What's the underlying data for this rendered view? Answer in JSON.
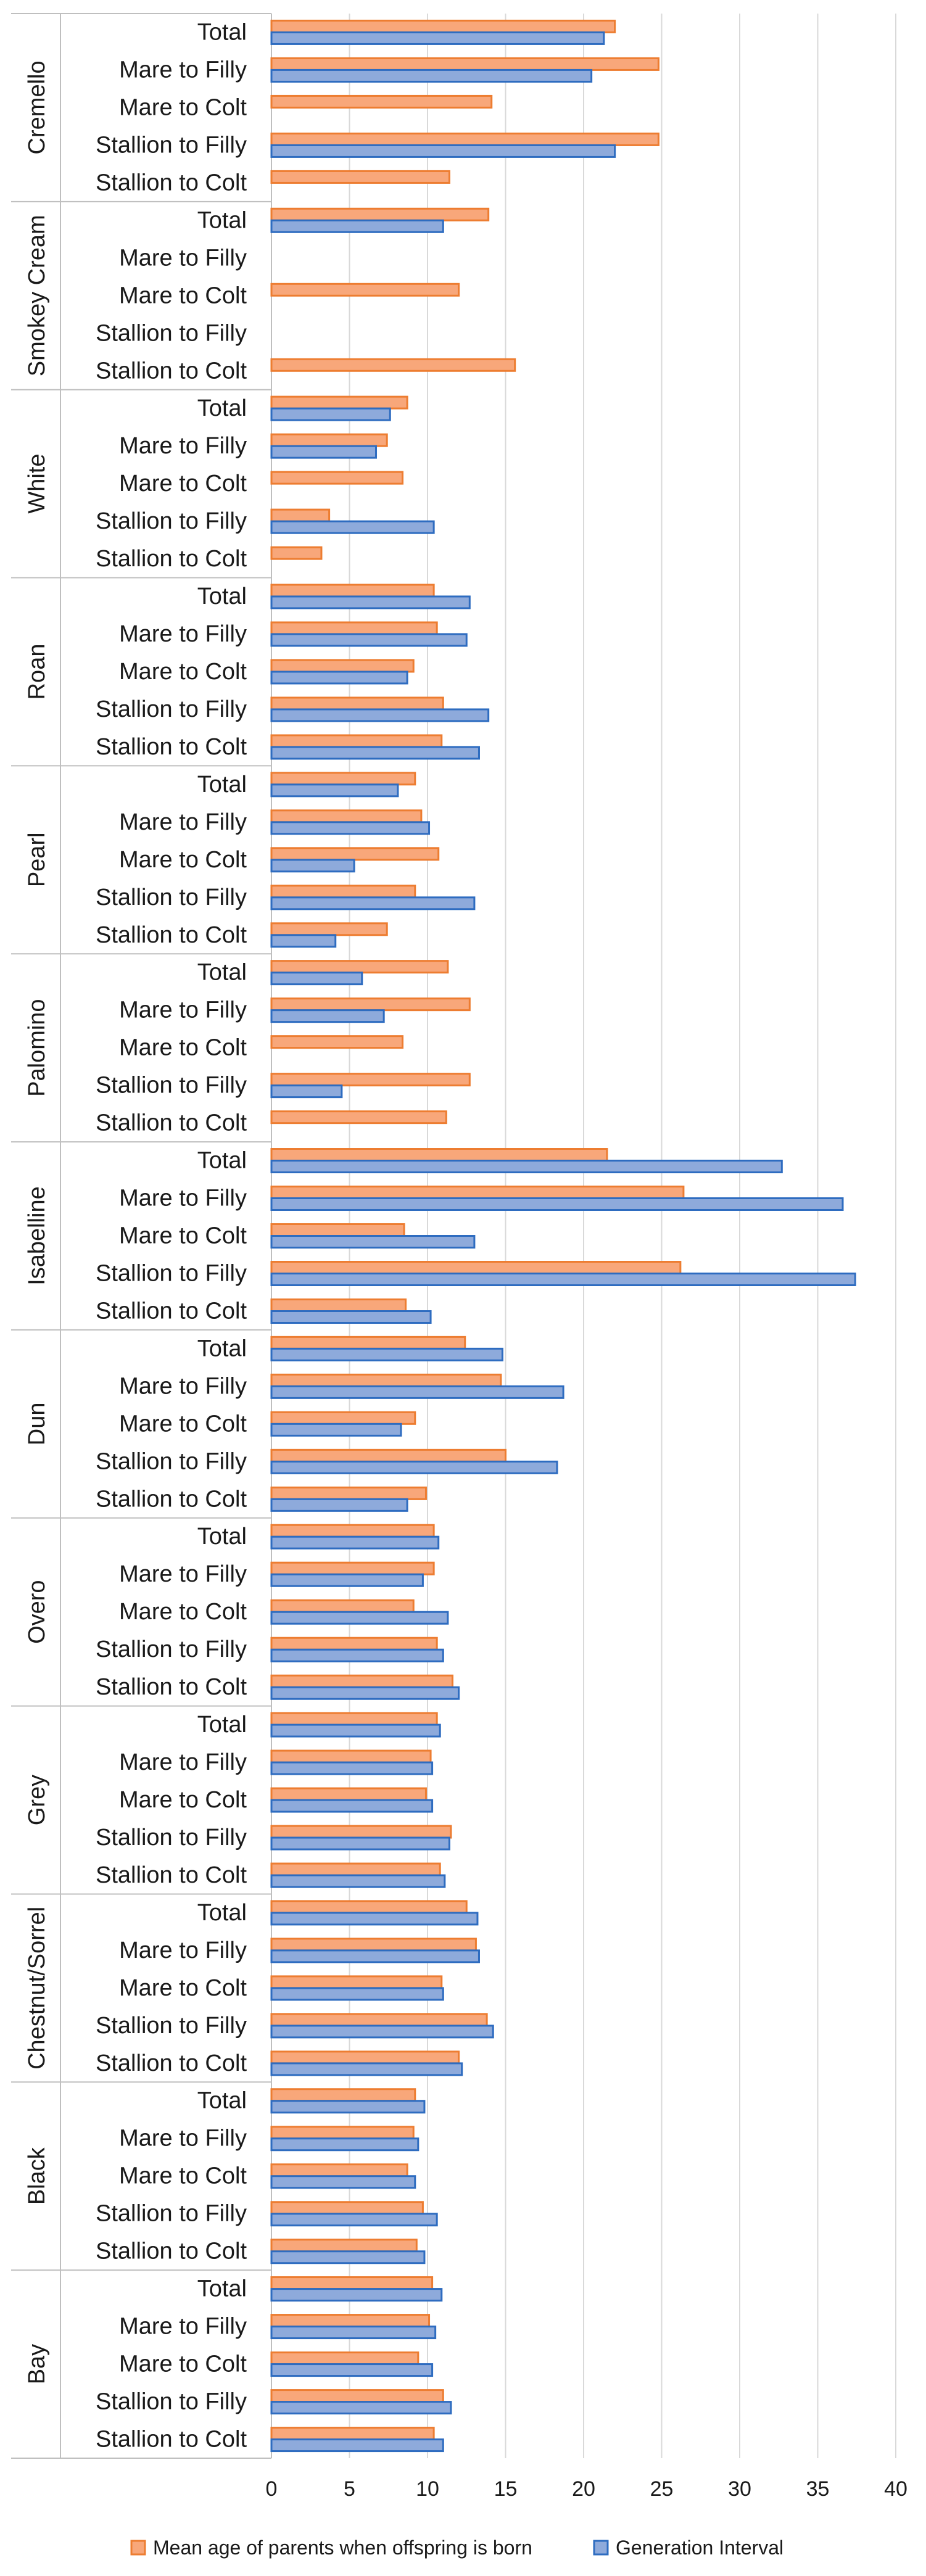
{
  "chart_data": {
    "type": "bar",
    "orientation": "horizontal",
    "title": "",
    "xlabel": "",
    "ylabel": "",
    "xlim": [
      0,
      40
    ],
    "x_ticks": [
      "0",
      "5",
      "10",
      "15",
      "20",
      "25",
      "30",
      "35",
      "40"
    ],
    "grid": true,
    "legend_position": "bottom",
    "legend": [
      "Mean age of parents when offspring is born",
      "Generation Interval"
    ],
    "colors": {
      "mean_age_fill": "#f8a77a",
      "mean_age_edge": "#ed7d31",
      "generation_fill": "#8eaadb",
      "generation_edge": "#2e6cc0",
      "grid": "#d9d9d9",
      "axis": "#bfbfbf"
    },
    "categories": [
      "Total",
      "Mare to Filly",
      "Mare to Colt",
      "Stallion to Filly",
      "Stallion to Colt"
    ],
    "groups": [
      {
        "name": "Cremello",
        "mean_age": [
          22.0,
          24.8,
          14.1,
          24.8,
          11.4
        ],
        "generation_interval": [
          21.3,
          20.5,
          null,
          22.0,
          null
        ]
      },
      {
        "name": "Smokey Cream",
        "mean_age": [
          13.9,
          null,
          12.0,
          null,
          15.6
        ],
        "generation_interval": [
          11.0,
          null,
          null,
          null,
          null
        ]
      },
      {
        "name": "White",
        "mean_age": [
          8.7,
          7.4,
          8.4,
          3.7,
          3.2
        ],
        "generation_interval": [
          7.6,
          6.7,
          null,
          10.4,
          null
        ]
      },
      {
        "name": "Roan",
        "mean_age": [
          10.4,
          10.6,
          9.1,
          11.0,
          10.9
        ],
        "generation_interval": [
          12.7,
          12.5,
          8.7,
          13.9,
          13.3
        ]
      },
      {
        "name": "Pearl",
        "mean_age": [
          9.2,
          9.6,
          10.7,
          9.2,
          7.4
        ],
        "generation_interval": [
          8.1,
          10.1,
          5.3,
          13.0,
          4.1
        ]
      },
      {
        "name": "Palomino",
        "mean_age": [
          11.3,
          12.7,
          8.4,
          12.7,
          11.2
        ],
        "generation_interval": [
          5.8,
          7.2,
          null,
          4.5,
          null
        ]
      },
      {
        "name": "Isabelline",
        "mean_age": [
          21.5,
          26.4,
          8.5,
          26.2,
          8.6
        ],
        "generation_interval": [
          32.7,
          36.6,
          13.0,
          37.4,
          10.2
        ]
      },
      {
        "name": "Dun",
        "mean_age": [
          12.4,
          14.7,
          9.2,
          15.0,
          9.9
        ],
        "generation_interval": [
          14.8,
          18.7,
          8.3,
          18.3,
          8.7
        ]
      },
      {
        "name": "Overo",
        "mean_age": [
          10.4,
          10.4,
          9.1,
          10.6,
          11.6
        ],
        "generation_interval": [
          10.7,
          9.7,
          11.3,
          11.0,
          12.0
        ]
      },
      {
        "name": "Grey",
        "mean_age": [
          10.6,
          10.2,
          9.9,
          11.5,
          10.8
        ],
        "generation_interval": [
          10.8,
          10.3,
          10.3,
          11.4,
          11.1
        ]
      },
      {
        "name": "Chestnut/Sorrel",
        "mean_age": [
          12.5,
          13.1,
          10.9,
          13.8,
          12.0
        ],
        "generation_interval": [
          13.2,
          13.3,
          11.0,
          14.2,
          12.2
        ]
      },
      {
        "name": "Black",
        "mean_age": [
          9.2,
          9.1,
          8.7,
          9.7,
          9.3
        ],
        "generation_interval": [
          9.8,
          9.4,
          9.2,
          10.6,
          9.8
        ]
      },
      {
        "name": "Bay",
        "mean_age": [
          10.3,
          10.1,
          9.4,
          11.0,
          10.4
        ],
        "generation_interval": [
          10.9,
          10.5,
          10.3,
          11.5,
          11.0
        ]
      }
    ]
  }
}
